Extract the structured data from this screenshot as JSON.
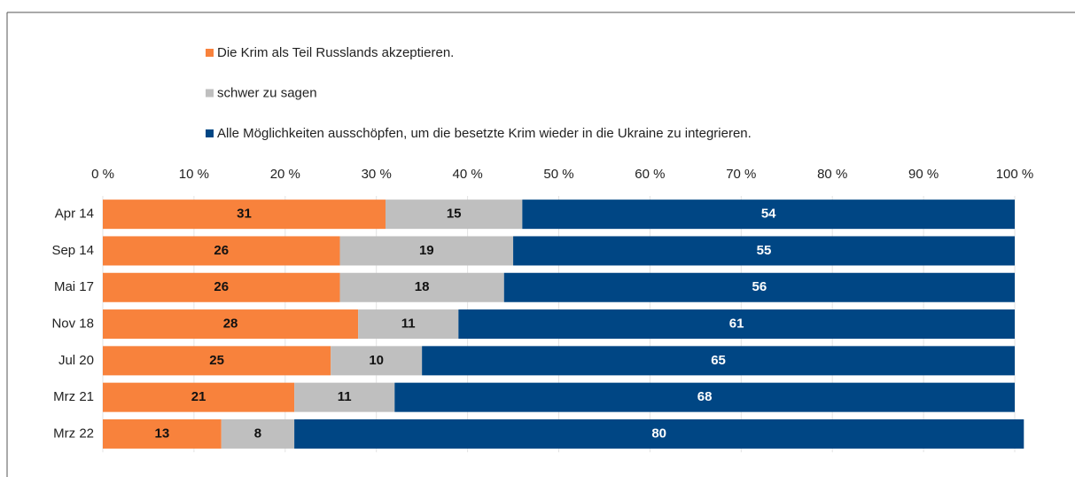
{
  "chart_data": {
    "type": "stacked_barh",
    "categories": [
      "Apr 14",
      "Sep 14",
      "Mai 17",
      "Nov 18",
      "Jul 20",
      "Mrz 21",
      "Mrz 22"
    ],
    "series": [
      {
        "name": "Die Krim als Teil Russlands akzeptieren.",
        "color": "#f8823c",
        "values": [
          31,
          26,
          26,
          28,
          25,
          21,
          13
        ]
      },
      {
        "name": "schwer zu sagen",
        "color": "#bfbfbf",
        "values": [
          15,
          19,
          18,
          11,
          10,
          11,
          8
        ]
      },
      {
        "name": "Alle Möglichkeiten ausschöpfen, um die besetzte Krim wieder in die Ukraine zu integrieren.",
        "color": "#004684",
        "values": [
          54,
          55,
          56,
          61,
          65,
          68,
          80
        ]
      }
    ],
    "xlim": [
      0,
      100
    ],
    "xticks": [
      {
        "value": 0,
        "label": "0 %"
      },
      {
        "value": 10,
        "label": "10 %"
      },
      {
        "value": 20,
        "label": "20 %"
      },
      {
        "value": 30,
        "label": "30 %"
      },
      {
        "value": 40,
        "label": "40 %"
      },
      {
        "value": 50,
        "label": "50 %"
      },
      {
        "value": 60,
        "label": "60 %"
      },
      {
        "value": 70,
        "label": "70 %"
      },
      {
        "value": 80,
        "label": "80 %"
      },
      {
        "value": 90,
        "label": "90 %"
      },
      {
        "value": 100,
        "label": "100 %"
      }
    ],
    "grid": true,
    "legend": "top"
  }
}
